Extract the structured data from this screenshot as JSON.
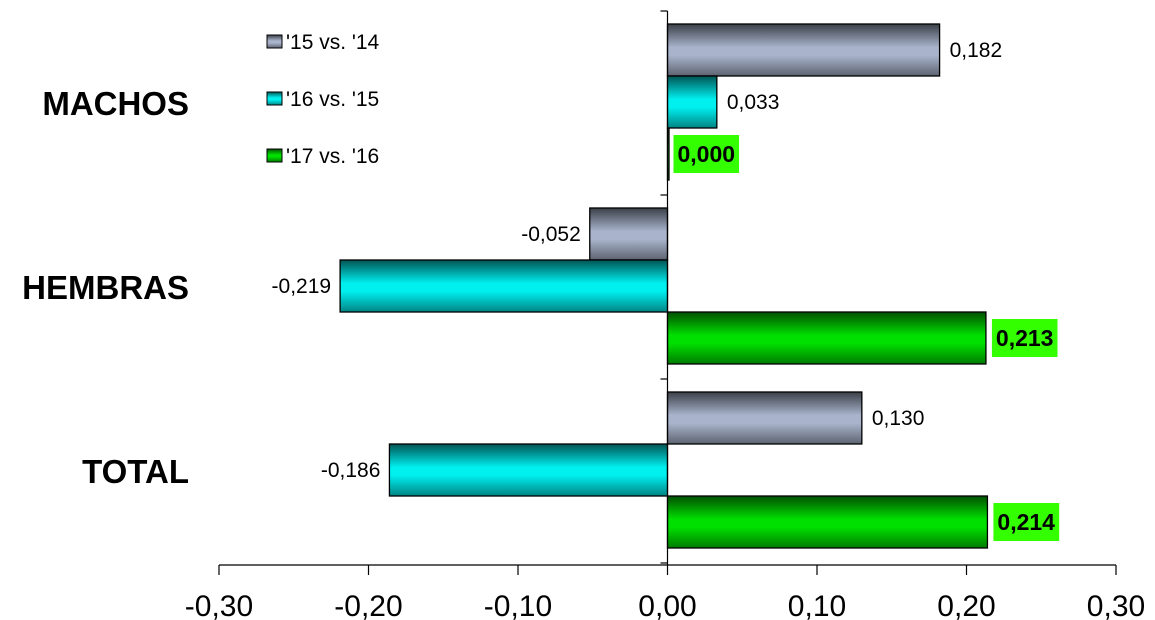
{
  "chart_data": {
    "type": "bar",
    "orientation": "horizontal",
    "categories": [
      "MACHOS",
      "HEMBRAS",
      "TOTAL"
    ],
    "series": [
      {
        "name": "'15 vs. '14",
        "values": [
          0.182,
          -0.052,
          0.13
        ],
        "labels": [
          "0,182",
          "-0,052",
          "0,130"
        ],
        "color": "#a9b4cc",
        "highlight_labels": false
      },
      {
        "name": "'16 vs. '15",
        "values": [
          0.033,
          -0.219,
          -0.186
        ],
        "labels": [
          "0,033",
          "-0,219",
          "-0,186"
        ],
        "color": "#00f0f0",
        "highlight_labels": false
      },
      {
        "name": "'17 vs. '16",
        "values": [
          0.0,
          0.213,
          0.214
        ],
        "labels": [
          "0,000",
          "0,213",
          "0,214"
        ],
        "color": "#00e000",
        "highlight_labels": true
      }
    ],
    "xlim": [
      -0.3,
      0.3
    ],
    "xticks": [
      -0.3,
      -0.2,
      -0.1,
      0.0,
      0.1,
      0.2,
      0.3
    ],
    "xtick_labels": [
      "-0,30",
      "-0,20",
      "-0,10",
      "0,00",
      "0,10",
      "0,20",
      "0,30"
    ],
    "legend_position": "top-left",
    "highlight_label_bg": "#33ff00",
    "grid": false
  }
}
